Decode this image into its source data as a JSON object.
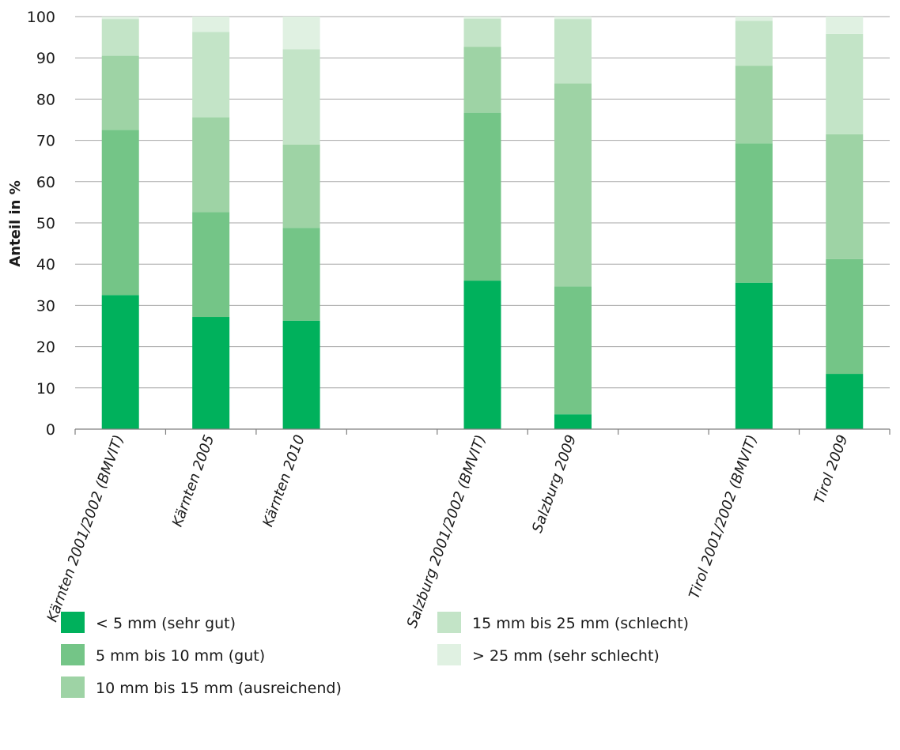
{
  "chart_data": {
    "type": "bar",
    "stacked": true,
    "title": "",
    "xlabel": "",
    "ylabel": "Anteil in %",
    "ylim": [
      0,
      100
    ],
    "yticks": [
      0,
      10,
      20,
      30,
      40,
      50,
      60,
      70,
      80,
      90,
      100
    ],
    "grid": true,
    "legend_position": "bottom",
    "categories": [
      "Kärnten 2001/2002 (BMVIT)",
      "Kärnten 2005",
      "Kärnten 2010",
      "",
      "Salzburg 2001/2002 (BMVIT)",
      "Salzburg 2009",
      "",
      "Tirol 2001/2002 (BMVIT)",
      "Tirol 2009"
    ],
    "series": [
      {
        "name": "< 5 mm (sehr gut)",
        "color": "#00b15c",
        "values": [
          32.5,
          27.2,
          26.3,
          null,
          36.0,
          3.6,
          null,
          35.5,
          13.4
        ]
      },
      {
        "name": "5 mm bis 10 mm (gut)",
        "color": "#74c587",
        "values": [
          40.0,
          25.4,
          22.5,
          null,
          40.7,
          31.0,
          null,
          33.8,
          27.8
        ]
      },
      {
        "name": "10 mm bis 15 mm (ausreichend)",
        "color": "#9ed3a5",
        "values": [
          18.0,
          23.0,
          20.2,
          null,
          16.0,
          49.2,
          null,
          18.8,
          30.3
        ]
      },
      {
        "name": "15 mm bis 25 mm (schlecht)",
        "color": "#c3e4c7",
        "values": [
          8.9,
          20.7,
          23.1,
          null,
          6.8,
          15.6,
          null,
          10.9,
          24.3
        ]
      },
      {
        "name": "> 25 mm (sehr schlecht)",
        "color": "#e0f1e2",
        "values": [
          0.6,
          3.7,
          7.9,
          null,
          0.5,
          0.6,
          null,
          1.0,
          4.2
        ]
      }
    ]
  }
}
